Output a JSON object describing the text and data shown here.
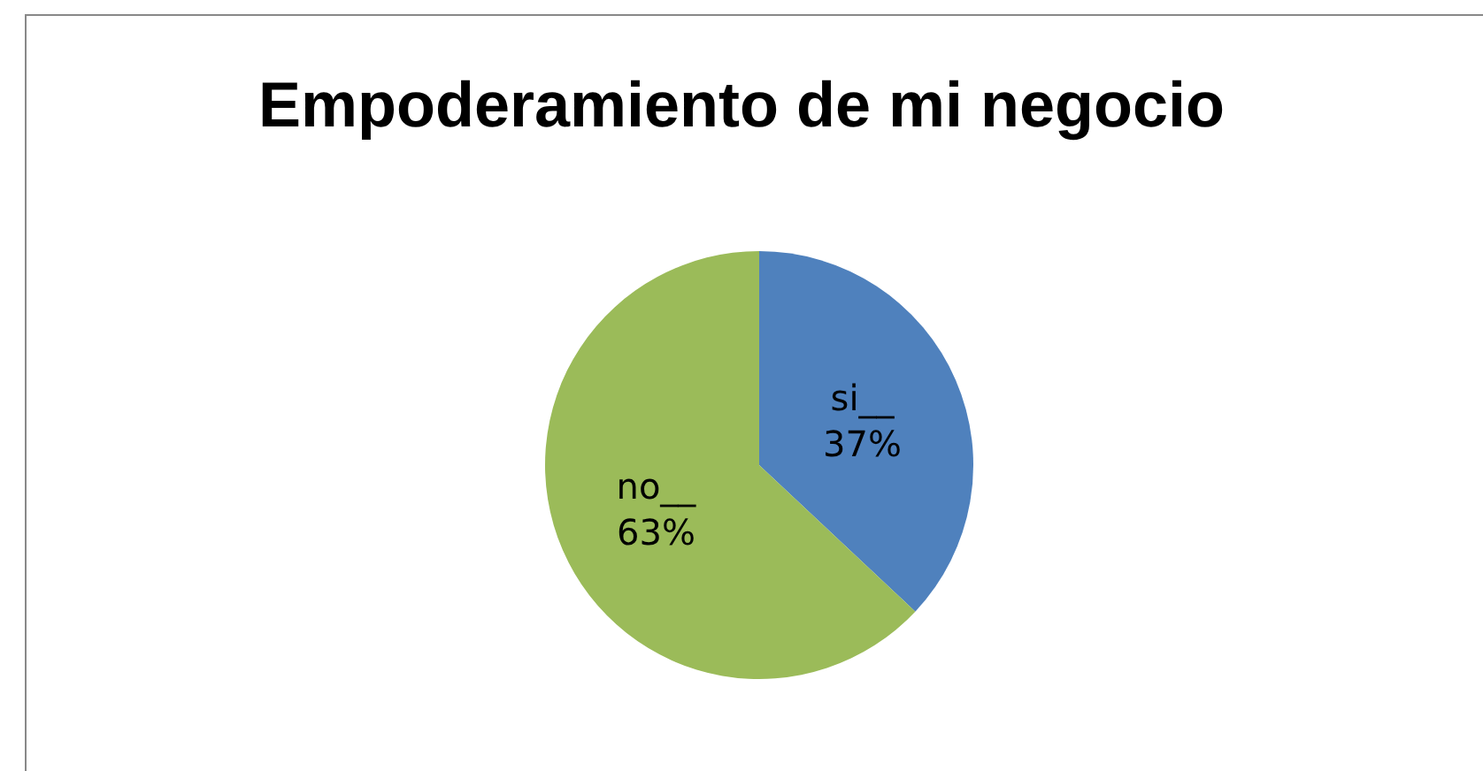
{
  "chart_data": {
    "type": "pie",
    "title": "Empoderamiento de mi negocio",
    "categories": [
      "si__",
      "no__"
    ],
    "values": [
      37,
      63
    ],
    "value_labels": [
      "37%",
      "63%"
    ],
    "colors": [
      "#4f81bd",
      "#9bbb59"
    ],
    "legend": false
  }
}
